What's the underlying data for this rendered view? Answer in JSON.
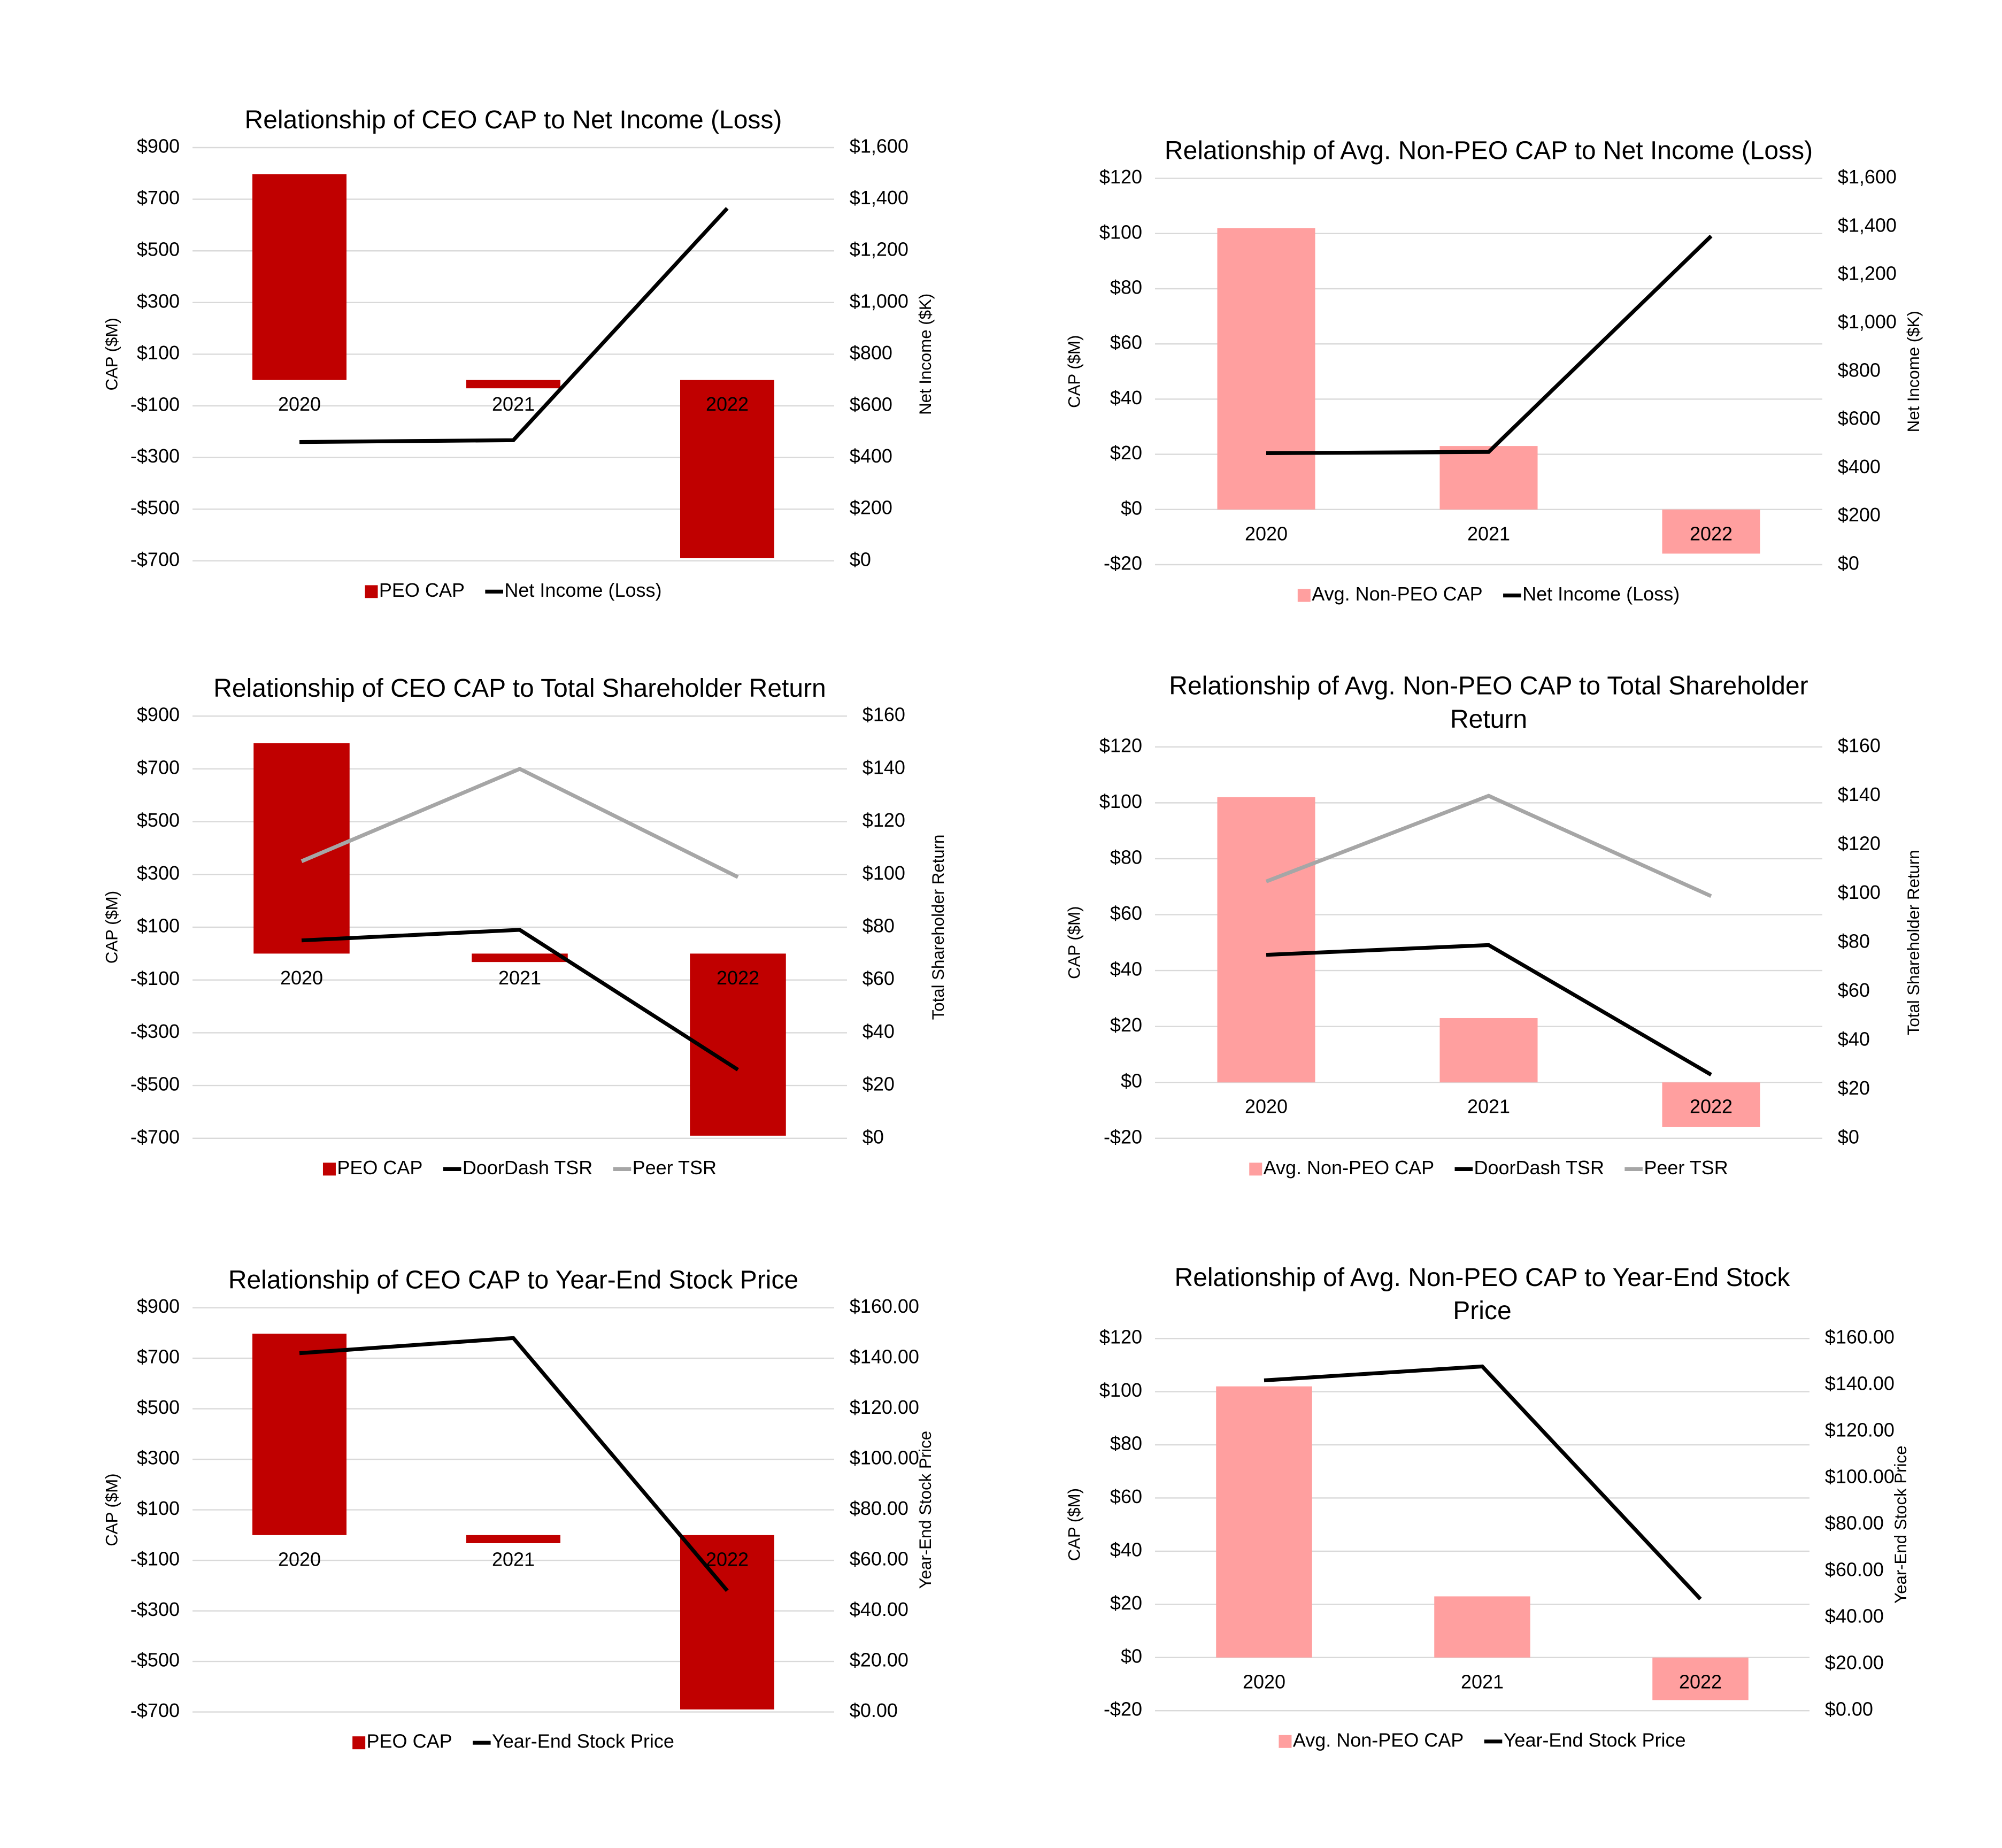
{
  "chart_data": [
    {
      "type": "bar_line",
      "title": "Relationship of CEO CAP to Net Income (Loss)",
      "categories": [
        "2020",
        "2021",
        "2022"
      ],
      "series": [
        {
          "name": "PEO CAP",
          "type": "bar",
          "color": "#c00000",
          "values": [
            797,
            -32,
            -690
          ]
        },
        {
          "name": "Net Income (Loss)",
          "type": "line",
          "axis": "y2",
          "color": "#000000",
          "values": [
            460,
            467,
            1365
          ]
        }
      ],
      "ylabel": "CAP ($M)",
      "y2label": "Net Income ($K)",
      "grid": true,
      "ylim": [
        -700,
        900
      ],
      "yticks": [
        {
          "value": -700,
          "label": "-$700"
        },
        {
          "value": -500,
          "label": "-$500"
        },
        {
          "value": -300,
          "label": "-$300"
        },
        {
          "value": -100,
          "label": "-$100"
        },
        {
          "value": 100,
          "label": "$100"
        },
        {
          "value": 300,
          "label": "$300"
        },
        {
          "value": 500,
          "label": "$500"
        },
        {
          "value": 700,
          "label": "$700"
        },
        {
          "value": 900,
          "label": "$900"
        }
      ],
      "y2lim": [
        0,
        1600
      ],
      "y2ticks": [
        {
          "value": 0,
          "label": "$0"
        },
        {
          "value": 200,
          "label": "$200"
        },
        {
          "value": 400,
          "label": "$400"
        },
        {
          "value": 600,
          "label": "$600"
        },
        {
          "value": 800,
          "label": "$800"
        },
        {
          "value": 1000,
          "label": "$1,000"
        },
        {
          "value": 1200,
          "label": "$1,200"
        },
        {
          "value": 1400,
          "label": "$1,400"
        },
        {
          "value": 1600,
          "label": "$1,600"
        }
      ]
    },
    {
      "type": "bar_line",
      "title": "Relationship of Avg. Non-PEO CAP to Net Income (Loss)",
      "categories": [
        "2020",
        "2021",
        "2022"
      ],
      "series": [
        {
          "name": "Avg. Non-PEO CAP",
          "type": "bar",
          "color": "#ff9f9f",
          "values": [
            102,
            23,
            -16
          ]
        },
        {
          "name": "Net Income (Loss)",
          "type": "line",
          "axis": "y2",
          "color": "#000000",
          "values": [
            462,
            467,
            1361
          ]
        }
      ],
      "ylabel": "CAP ($M)",
      "y2label": "Net Income ($K)",
      "grid": true,
      "ylim": [
        -20,
        120
      ],
      "yticks": [
        {
          "value": -20,
          "label": "-$20"
        },
        {
          "value": 0,
          "label": "$0"
        },
        {
          "value": 20,
          "label": "$20"
        },
        {
          "value": 40,
          "label": "$40"
        },
        {
          "value": 60,
          "label": "$60"
        },
        {
          "value": 80,
          "label": "$80"
        },
        {
          "value": 100,
          "label": "$100"
        },
        {
          "value": 120,
          "label": "$120"
        }
      ],
      "y2lim": [
        0,
        1600
      ],
      "y2ticks": [
        {
          "value": 0,
          "label": "$0"
        },
        {
          "value": 200,
          "label": "$200"
        },
        {
          "value": 400,
          "label": "$400"
        },
        {
          "value": 600,
          "label": "$600"
        },
        {
          "value": 800,
          "label": "$800"
        },
        {
          "value": 1000,
          "label": "$1,000"
        },
        {
          "value": 1200,
          "label": "$1,200"
        },
        {
          "value": 1400,
          "label": "$1,400"
        },
        {
          "value": 1600,
          "label": "$1,600"
        }
      ]
    },
    {
      "type": "bar_line",
      "title": "Relationship of CEO CAP to Total Shareholder Return",
      "categories": [
        "2020",
        "2021",
        "2022"
      ],
      "series": [
        {
          "name": "PEO CAP",
          "type": "bar",
          "color": "#c00000",
          "values": [
            797,
            -32,
            -690
          ]
        },
        {
          "name": "DoorDash TSR",
          "type": "line",
          "axis": "y2",
          "color": "#000000",
          "values": [
            75,
            79,
            26
          ]
        },
        {
          "name": "Peer TSR",
          "type": "line",
          "axis": "y2",
          "color": "#a6a6a6",
          "values": [
            105,
            140,
            99
          ]
        }
      ],
      "ylabel": "CAP ($M)",
      "y2label": "Total Shareholder Return",
      "grid": true,
      "ylim": [
        -700,
        900
      ],
      "yticks": [
        {
          "value": -700,
          "label": "-$700"
        },
        {
          "value": -500,
          "label": "-$500"
        },
        {
          "value": -300,
          "label": "-$300"
        },
        {
          "value": -100,
          "label": "-$100"
        },
        {
          "value": 100,
          "label": "$100"
        },
        {
          "value": 300,
          "label": "$300"
        },
        {
          "value": 500,
          "label": "$500"
        },
        {
          "value": 700,
          "label": "$700"
        },
        {
          "value": 900,
          "label": "$900"
        }
      ],
      "y2lim": [
        0,
        160
      ],
      "y2ticks": [
        {
          "value": 0,
          "label": "$0"
        },
        {
          "value": 20,
          "label": "$20"
        },
        {
          "value": 40,
          "label": "$40"
        },
        {
          "value": 60,
          "label": "$60"
        },
        {
          "value": 80,
          "label": "$80"
        },
        {
          "value": 100,
          "label": "$100"
        },
        {
          "value": 120,
          "label": "$120"
        },
        {
          "value": 140,
          "label": "$140"
        },
        {
          "value": 160,
          "label": "$160"
        }
      ]
    },
    {
      "type": "bar_line",
      "title": "Relationship of Avg. Non-PEO CAP to Total Shareholder Return",
      "categories": [
        "2020",
        "2021",
        "2022"
      ],
      "series": [
        {
          "name": "Avg. Non-PEO CAP",
          "type": "bar",
          "color": "#ff9f9f",
          "values": [
            102,
            23,
            -16
          ]
        },
        {
          "name": "DoorDash TSR",
          "type": "line",
          "axis": "y2",
          "color": "#000000",
          "values": [
            75,
            79,
            26
          ]
        },
        {
          "name": "Peer TSR",
          "type": "line",
          "axis": "y2",
          "color": "#a6a6a6",
          "values": [
            105,
            140,
            99
          ]
        }
      ],
      "ylabel": "CAP ($M)",
      "y2label": "Total Shareholder Return",
      "grid": true,
      "ylim": [
        -20,
        120
      ],
      "yticks": [
        {
          "value": -20,
          "label": "-$20"
        },
        {
          "value": 0,
          "label": "$0"
        },
        {
          "value": 20,
          "label": "$20"
        },
        {
          "value": 40,
          "label": "$40"
        },
        {
          "value": 60,
          "label": "$60"
        },
        {
          "value": 80,
          "label": "$80"
        },
        {
          "value": 100,
          "label": "$100"
        },
        {
          "value": 120,
          "label": "$120"
        }
      ],
      "y2lim": [
        0,
        160
      ],
      "y2ticks": [
        {
          "value": 0,
          "label": "$0"
        },
        {
          "value": 20,
          "label": "$20"
        },
        {
          "value": 40,
          "label": "$40"
        },
        {
          "value": 60,
          "label": "$60"
        },
        {
          "value": 80,
          "label": "$80"
        },
        {
          "value": 100,
          "label": "$100"
        },
        {
          "value": 120,
          "label": "$120"
        },
        {
          "value": 140,
          "label": "$140"
        },
        {
          "value": 160,
          "label": "$160"
        }
      ]
    },
    {
      "type": "bar_line",
      "title": "Relationship of CEO CAP to Year-End Stock Price",
      "categories": [
        "2020",
        "2021",
        "2022"
      ],
      "series": [
        {
          "name": "PEO CAP",
          "type": "bar",
          "color": "#c00000",
          "values": [
            797,
            -32,
            -690
          ]
        },
        {
          "name": "Year-End Stock Price",
          "type": "line",
          "axis": "y2",
          "color": "#000000",
          "values": [
            142,
            148,
            48
          ]
        }
      ],
      "ylabel": "CAP ($M)",
      "y2label": "Year-End Stock Price",
      "grid": true,
      "ylim": [
        -700,
        900
      ],
      "yticks": [
        {
          "value": -700,
          "label": "-$700"
        },
        {
          "value": -500,
          "label": "-$500"
        },
        {
          "value": -300,
          "label": "-$300"
        },
        {
          "value": -100,
          "label": "-$100"
        },
        {
          "value": 100,
          "label": "$100"
        },
        {
          "value": 300,
          "label": "$300"
        },
        {
          "value": 500,
          "label": "$500"
        },
        {
          "value": 700,
          "label": "$700"
        },
        {
          "value": 900,
          "label": "$900"
        }
      ],
      "y2lim": [
        0,
        160
      ],
      "y2ticks": [
        {
          "value": 0,
          "label": "$0.00"
        },
        {
          "value": 20,
          "label": "$20.00"
        },
        {
          "value": 40,
          "label": "$40.00"
        },
        {
          "value": 60,
          "label": "$60.00"
        },
        {
          "value": 80,
          "label": "$80.00"
        },
        {
          "value": 100,
          "label": "$100.00"
        },
        {
          "value": 120,
          "label": "$120.00"
        },
        {
          "value": 140,
          "label": "$140.00"
        },
        {
          "value": 160,
          "label": "$160.00"
        }
      ]
    },
    {
      "type": "bar_line",
      "title": "Relationship of Avg. Non-PEO CAP to Year-End Stock Price",
      "categories": [
        "2020",
        "2021",
        "2022"
      ],
      "series": [
        {
          "name": "Avg. Non-PEO CAP",
          "type": "bar",
          "color": "#ff9f9f",
          "values": [
            102,
            23,
            -16
          ]
        },
        {
          "name": "Year-End Stock Price",
          "type": "line",
          "axis": "y2",
          "color": "#000000",
          "values": [
            142,
            148,
            48
          ]
        }
      ],
      "ylabel": "CAP ($M)",
      "y2label": "Year-End Stock Price",
      "grid": true,
      "ylim": [
        -20,
        120
      ],
      "yticks": [
        {
          "value": -20,
          "label": "-$20"
        },
        {
          "value": 0,
          "label": "$0"
        },
        {
          "value": 20,
          "label": "$20"
        },
        {
          "value": 40,
          "label": "$40"
        },
        {
          "value": 60,
          "label": "$60"
        },
        {
          "value": 80,
          "label": "$80"
        },
        {
          "value": 100,
          "label": "$100"
        },
        {
          "value": 120,
          "label": "$120"
        }
      ],
      "y2lim": [
        0,
        160
      ],
      "y2ticks": [
        {
          "value": 0,
          "label": "$0.00"
        },
        {
          "value": 20,
          "label": "$20.00"
        },
        {
          "value": 40,
          "label": "$40.00"
        },
        {
          "value": 60,
          "label": "$60.00"
        },
        {
          "value": 80,
          "label": "$80.00"
        },
        {
          "value": 100,
          "label": "$100.00"
        },
        {
          "value": 120,
          "label": "$120.00"
        },
        {
          "value": 140,
          "label": "$140.00"
        },
        {
          "value": 160,
          "label": "$160.00"
        }
      ]
    }
  ]
}
